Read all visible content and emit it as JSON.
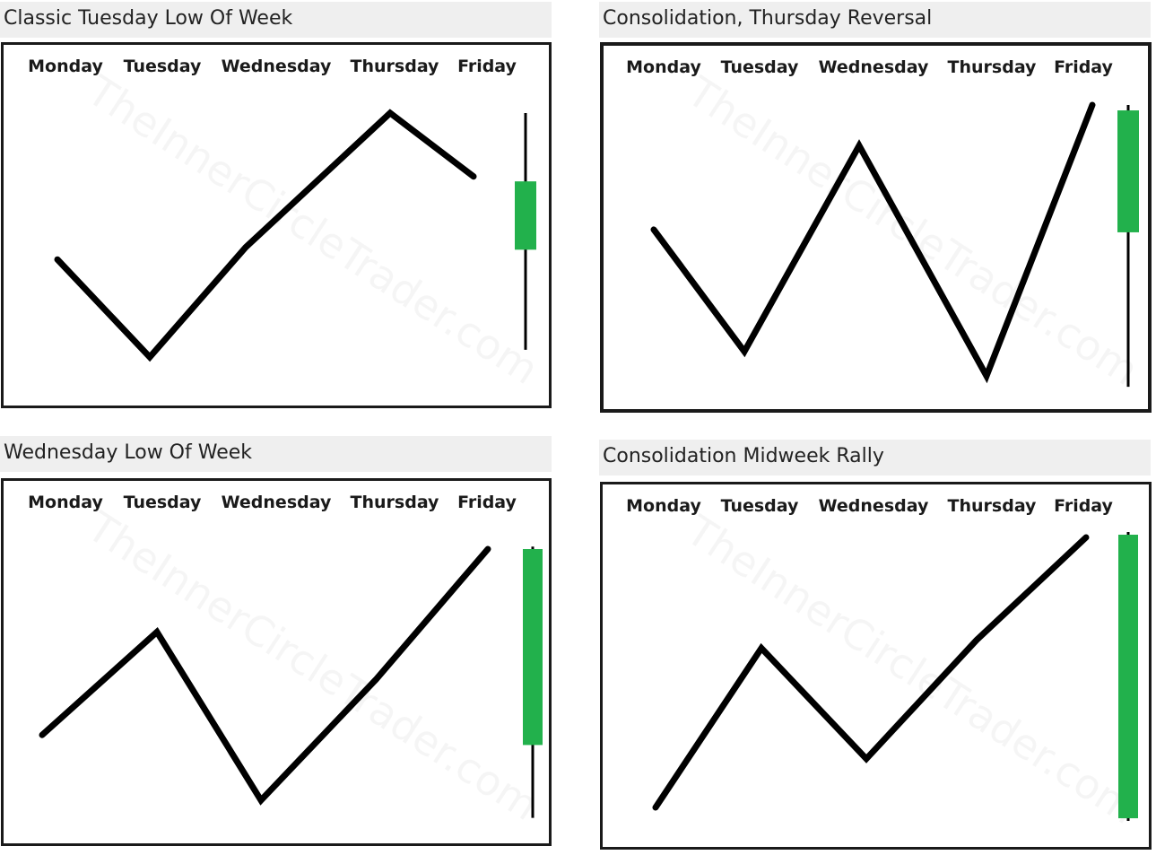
{
  "chart_data": [
    {
      "type": "line",
      "title": "Classic Tuesday Low Of Week",
      "categories": [
        "Monday",
        "Tuesday",
        "Wednesday",
        "Thursday",
        "Friday"
      ],
      "series": [
        {
          "values": [
            40,
            0,
            45,
            100,
            74
          ]
        }
      ],
      "ylim": [
        0,
        100
      ],
      "candle": {
        "direction": "up",
        "open": 44,
        "close": 72,
        "high": 100,
        "low": 3,
        "color": "#22b14c"
      },
      "watermark": "TheInnerCircleTrader.com"
    },
    {
      "type": "line",
      "title": "Consolidation, Thursday Reversal",
      "categories": [
        "Monday",
        "Tuesday",
        "Wednesday",
        "Thursday",
        "Friday"
      ],
      "series": [
        {
          "values": [
            54,
            9,
            85,
            0,
            100
          ]
        }
      ],
      "ylim": [
        0,
        100
      ],
      "candle": {
        "direction": "up",
        "open": 53,
        "close": 98,
        "high": 100,
        "low": -4,
        "color": "#22b14c"
      },
      "watermark": "TheInnerCircleTrader.com"
    },
    {
      "type": "line",
      "title": "Wednesday Low Of Week",
      "categories": [
        "Monday",
        "Tuesday",
        "Wednesday",
        "Thursday",
        "Friday"
      ],
      "series": [
        {
          "values": [
            26,
            67,
            0,
            48,
            100
          ]
        }
      ],
      "ylim": [
        0,
        100
      ],
      "candle": {
        "direction": "up",
        "open": 22,
        "close": 100,
        "high": 101,
        "low": -7,
        "color": "#22b14c"
      },
      "watermark": "TheInnerCircleTrader.com"
    },
    {
      "type": "line",
      "title": "Consolidation Midweek Rally",
      "categories": [
        "Monday",
        "Tuesday",
        "Wednesday",
        "Thursday",
        "Friday"
      ],
      "series": [
        {
          "values": [
            0,
            59,
            18,
            62,
            100
          ]
        }
      ],
      "ylim": [
        0,
        100
      ],
      "candle": {
        "direction": "up",
        "open": -4,
        "close": 101,
        "high": 102,
        "low": -5,
        "color": "#22b14c"
      },
      "watermark": "TheInnerCircleTrader.com"
    }
  ]
}
